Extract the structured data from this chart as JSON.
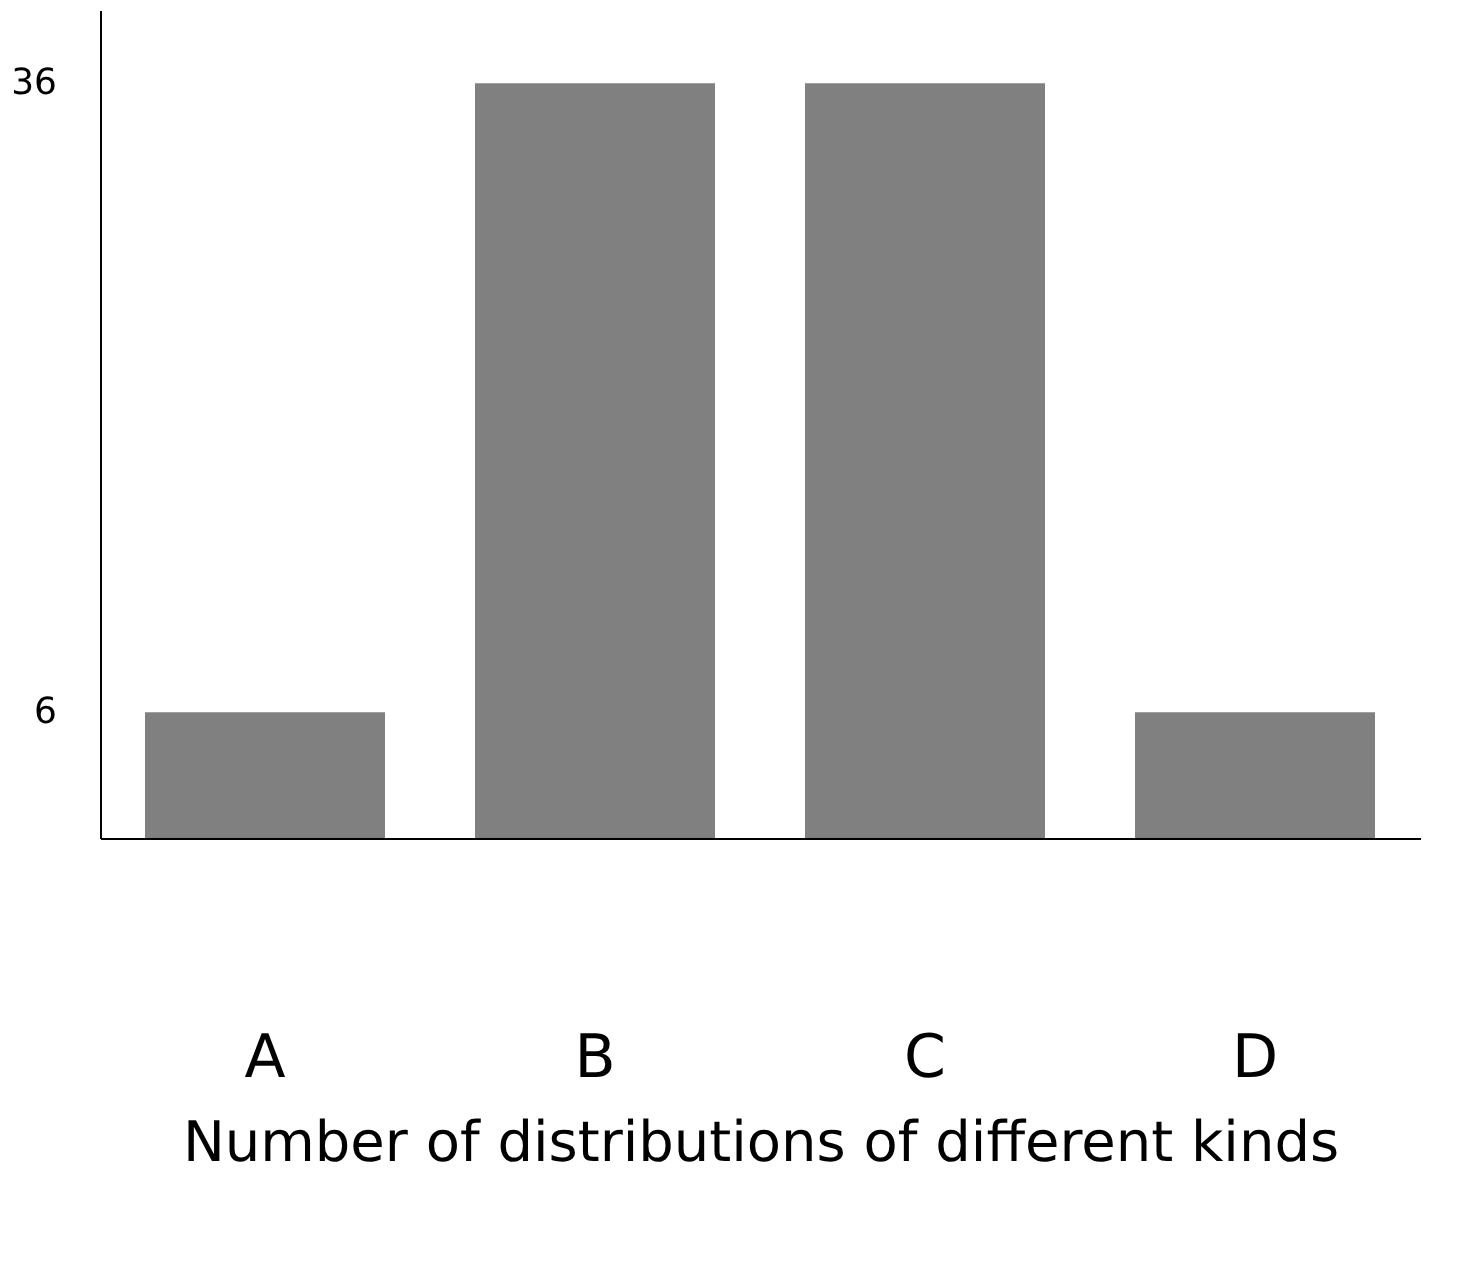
{
  "chart_data": {
    "type": "bar",
    "xlabel": "Number of distributions of different kinds",
    "categories": [
      "A",
      "B",
      "C",
      "D"
    ],
    "values": [
      6,
      36,
      36,
      6
    ],
    "color": "#808080",
    "ylim": [
      0,
      39.5
    ],
    "yticks": [
      6,
      36
    ],
    "grid": false
  }
}
